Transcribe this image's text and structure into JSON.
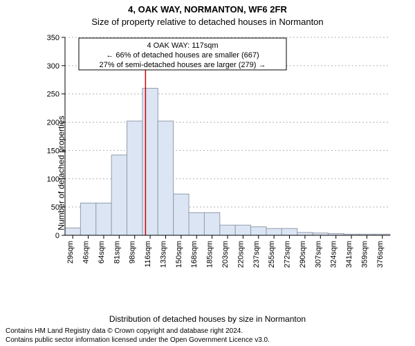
{
  "title": "4, OAK WAY, NORMANTON, WF6 2FR",
  "subtitle": "Size of property relative to detached houses in Normanton",
  "ylabel": "Number of detached properties",
  "xlabel": "Distribution of detached houses by size in Normanton",
  "footnote_l1": "Contains HM Land Registry data © Crown copyright and database right 2024.",
  "footnote_l2": "Contains public sector information licensed under the Open Government Licence v3.0.",
  "annotation": {
    "line1": "4 OAK WAY: 117sqm",
    "line2": "← 66% of detached houses are smaller (667)",
    "line3": "27% of semi-detached houses are larger (279) →"
  },
  "chart": {
    "type": "histogram",
    "x_categories": [
      "29sqm",
      "46sqm",
      "64sqm",
      "81sqm",
      "98sqm",
      "116sqm",
      "133sqm",
      "150sqm",
      "168sqm",
      "185sqm",
      "203sqm",
      "220sqm",
      "237sqm",
      "255sqm",
      "272sqm",
      "290sqm",
      "307sqm",
      "324sqm",
      "341sqm",
      "359sqm",
      "376sqm"
    ],
    "values": [
      13,
      57,
      57,
      142,
      202,
      260,
      202,
      73,
      40,
      40,
      18,
      18,
      15,
      12,
      12,
      5,
      4,
      3,
      2,
      2,
      2
    ],
    "bar_fill": "#dbe5f4",
    "bar_stroke": "#939cab",
    "ylim": [
      0,
      350
    ],
    "ytick_step": 50,
    "grid_color": "#b0b0b0",
    "background_color": "#ffffff",
    "marker_x_category_index": 5,
    "marker_color": "#cc0000",
    "title_fontsize": 13,
    "subtitle_fontsize": 13,
    "axis_label_fontsize": 12,
    "tick_fontsize": 11,
    "anno_fontsize": 11,
    "footnote_fontsize": 10
  }
}
